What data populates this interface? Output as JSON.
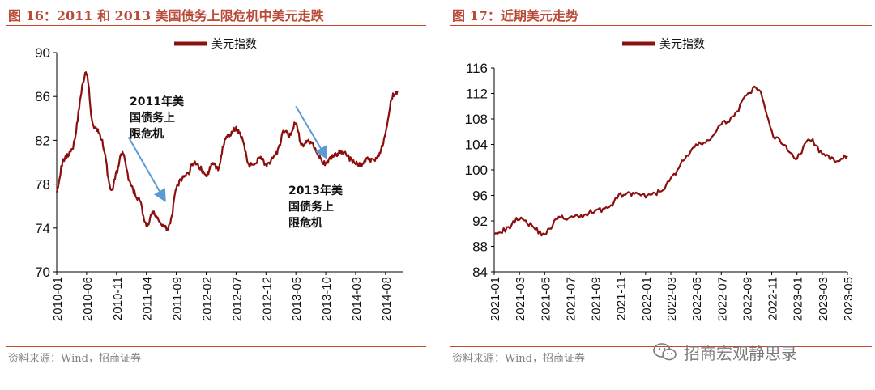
{
  "left": {
    "title": "图 16：2011 和 2013 美国债务上限危机中美元走跌",
    "source": "资料来源：Wind，招商证券"
  },
  "right": {
    "title": "图 17：近期美元走势",
    "source": "资料来源：Wind，招商证券"
  },
  "watermark": {
    "text": "招商宏观静思录",
    "icon": "wechat-icon"
  },
  "chart_data": [
    {
      "type": "line",
      "legend": "美元指数",
      "legend_position": "top",
      "color": "#8b0f0f",
      "grid": false,
      "ylim": [
        70,
        90
      ],
      "yticks": [
        "90",
        "86",
        "82",
        "78",
        "74",
        "70"
      ],
      "xlim": [
        "2010-01",
        "2014-11"
      ],
      "xtick_labels": [
        "2010-01",
        "2010-06",
        "2010-11",
        "2011-04",
        "2011-09",
        "2012-02",
        "2012-07",
        "2012-12",
        "2013-05",
        "2013-10",
        "2014-03",
        "2014-08"
      ],
      "x": [
        "2010-01",
        "2010-02",
        "2010-03",
        "2010-04",
        "2010-05",
        "2010-06",
        "2010-07",
        "2010-08",
        "2010-09",
        "2010-10",
        "2010-11",
        "2010-12",
        "2011-01",
        "2011-02",
        "2011-03",
        "2011-04",
        "2011-05",
        "2011-06",
        "2011-07",
        "2011-08",
        "2011-09",
        "2011-10",
        "2011-11",
        "2011-12",
        "2012-01",
        "2012-02",
        "2012-03",
        "2012-04",
        "2012-05",
        "2012-06",
        "2012-07",
        "2012-08",
        "2012-09",
        "2012-10",
        "2012-11",
        "2012-12",
        "2013-01",
        "2013-02",
        "2013-03",
        "2013-04",
        "2013-05",
        "2013-06",
        "2013-07",
        "2013-08",
        "2013-09",
        "2013-10",
        "2013-11",
        "2013-12",
        "2014-01",
        "2014-02",
        "2014-03",
        "2014-04",
        "2014-05",
        "2014-06",
        "2014-07",
        "2014-08",
        "2014-09",
        "2014-10"
      ],
      "values": [
        77.5,
        80.0,
        80.8,
        82.0,
        86.0,
        88.0,
        83.5,
        82.8,
        81.0,
        77.5,
        79.0,
        80.8,
        78.5,
        77.2,
        76.3,
        74.2,
        75.3,
        74.8,
        74.0,
        74.5,
        77.5,
        78.5,
        79.0,
        80.0,
        79.5,
        78.8,
        79.8,
        79.5,
        81.8,
        82.5,
        83.0,
        82.2,
        80.0,
        79.8,
        80.5,
        79.8,
        80.2,
        81.0,
        82.8,
        82.5,
        83.5,
        81.5,
        82.0,
        81.5,
        80.5,
        79.8,
        80.5,
        80.8,
        81.0,
        80.3,
        79.9,
        79.8,
        80.3,
        80.2,
        80.9,
        82.5,
        85.7,
        86.5
      ],
      "annotations": [
        {
          "text_lines": [
            "2011年美",
            "国债务上",
            "限危机"
          ],
          "arrow_from": [
            "2011-01",
            82.3
          ],
          "arrow_to": [
            "2011-07",
            76.6
          ]
        },
        {
          "text_lines": [
            "2013年美",
            "国债务上",
            "限危机"
          ],
          "arrow_from": [
            "2013-05",
            85.1
          ],
          "arrow_to": [
            "2013-10",
            80.5
          ]
        }
      ]
    },
    {
      "type": "line",
      "legend": "美元指数",
      "legend_position": "top",
      "color": "#8b0f0f",
      "grid": false,
      "ylim": [
        84,
        116
      ],
      "yticks": [
        "116",
        "112",
        "108",
        "104",
        "100",
        "96",
        "92",
        "88",
        "84"
      ],
      "xlim": [
        "2021-01",
        "2023-05"
      ],
      "xtick_labels": [
        "2021-01",
        "2021-03",
        "2021-05",
        "2021-07",
        "2021-09",
        "2021-11",
        "2022-01",
        "2022-03",
        "2022-05",
        "2022-07",
        "2022-09",
        "2022-11",
        "2023-01",
        "2023-03",
        "2023-05"
      ],
      "x": [
        "2021-01",
        "2021-02",
        "2021-03",
        "2021-04",
        "2021-05",
        "2021-06",
        "2021-07",
        "2021-08",
        "2021-09",
        "2021-10",
        "2021-11",
        "2021-12",
        "2022-01",
        "2022-02",
        "2022-03",
        "2022-04",
        "2022-05",
        "2022-06",
        "2022-07",
        "2022-08",
        "2022-09",
        "2022-10",
        "2022-11",
        "2022-12",
        "2023-01",
        "2023-02",
        "2023-03",
        "2023-04",
        "2023-05"
      ],
      "values": [
        90.3,
        90.7,
        92.5,
        91.2,
        90.0,
        92.3,
        92.5,
        92.8,
        93.7,
        94.0,
        96.0,
        96.2,
        95.9,
        96.5,
        98.5,
        101.5,
        103.7,
        104.7,
        107.0,
        108.5,
        111.5,
        112.5,
        106.0,
        104.0,
        102.0,
        104.8,
        102.5,
        101.6,
        102.2
      ]
    }
  ]
}
